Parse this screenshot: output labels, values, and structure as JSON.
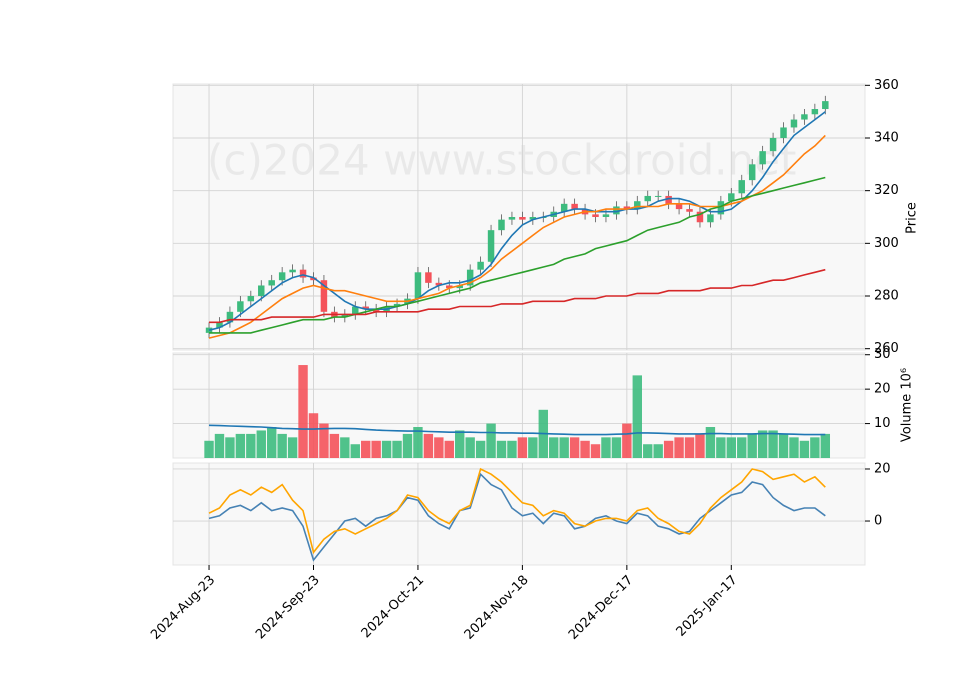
{
  "chart_data": {
    "type": "candlestick",
    "watermark": "(c)2024 www.stockdroid.net",
    "x": [
      0,
      1,
      2,
      3,
      4,
      5,
      6,
      7,
      8,
      9,
      10,
      11,
      12,
      13,
      14,
      15,
      16,
      17,
      18,
      19,
      20,
      21,
      22,
      23,
      24,
      25,
      26,
      27,
      28,
      29,
      30,
      31,
      32,
      33,
      34,
      35,
      36,
      37,
      38,
      39,
      40,
      41,
      42,
      43,
      44,
      45,
      46,
      47,
      48,
      49,
      50,
      51,
      52,
      53,
      54,
      55,
      56,
      57,
      58,
      59
    ],
    "xlim": [
      -3.45,
      62.8
    ],
    "xticks": [
      {
        "value": 0,
        "label": "2024-Aug-23"
      },
      {
        "value": 10,
        "label": "2024-Sep-23"
      },
      {
        "value": 20,
        "label": "2024-Oct-21"
      },
      {
        "value": 30,
        "label": "2024-Nov-18"
      },
      {
        "value": 40,
        "label": "2024-Dec-17"
      },
      {
        "value": 50,
        "label": "2025-Jan-17"
      }
    ],
    "open": [
      266,
      268,
      270,
      274,
      278,
      280,
      284,
      286,
      289,
      290,
      287,
      286,
      274,
      272,
      273,
      276,
      275,
      274,
      276,
      277,
      279,
      289,
      285,
      284,
      283,
      284,
      290,
      293,
      305,
      309,
      310,
      309,
      310,
      310,
      312,
      315,
      313,
      311,
      310,
      311,
      314,
      313,
      316,
      318,
      318,
      315,
      313,
      312,
      308,
      311,
      316,
      319,
      324,
      330,
      335,
      340,
      344,
      347,
      349,
      351
    ],
    "high": [
      270,
      272,
      276,
      280,
      282,
      286,
      288,
      291,
      292,
      292,
      289,
      288,
      276,
      275,
      278,
      278,
      277,
      278,
      279,
      281,
      291,
      291,
      287,
      286,
      286,
      292,
      295,
      307,
      311,
      312,
      312,
      312,
      312,
      314,
      317,
      317,
      315,
      313,
      313,
      316,
      316,
      318,
      320,
      320,
      320,
      317,
      315,
      314,
      313,
      318,
      321,
      326,
      332,
      337,
      342,
      346,
      349,
      351,
      353,
      356
    ],
    "low": [
      264,
      266,
      268,
      272,
      276,
      278,
      282,
      284,
      287,
      285,
      284,
      272,
      270,
      270,
      271,
      273,
      272,
      272,
      274,
      275,
      277,
      283,
      282,
      281,
      281,
      282,
      288,
      291,
      303,
      307,
      307,
      307,
      308,
      308,
      310,
      311,
      309,
      308,
      308,
      309,
      311,
      311,
      314,
      316,
      313,
      311,
      310,
      306,
      306,
      309,
      314,
      317,
      322,
      328,
      333,
      338,
      342,
      345,
      347,
      349
    ],
    "close": [
      268,
      270,
      274,
      278,
      280,
      284,
      286,
      289,
      290,
      287,
      286,
      274,
      272,
      273,
      276,
      275,
      274,
      276,
      277,
      279,
      289,
      285,
      284,
      283,
      284,
      290,
      293,
      305,
      309,
      310,
      309,
      310,
      310,
      312,
      315,
      313,
      311,
      310,
      311,
      314,
      313,
      316,
      318,
      318,
      315,
      313,
      312,
      308,
      311,
      316,
      319,
      324,
      330,
      335,
      340,
      344,
      347,
      349,
      351,
      354
    ],
    "up_color": "#3dbb7e",
    "down_color": "#f4525a",
    "ylim": [
      259.5,
      360.5
    ],
    "yticks": [
      260,
      280,
      300,
      320,
      340,
      360
    ],
    "y_label": "Price",
    "grid": true,
    "moving_averages": [
      {
        "color": "#1f77b4",
        "values": [
          267,
          268,
          270,
          273,
          276,
          279,
          282,
          285,
          287,
          288,
          287,
          284,
          281,
          278,
          276,
          275,
          275,
          275,
          276,
          277,
          279,
          282,
          284,
          285,
          285,
          286,
          288,
          292,
          298,
          303,
          307,
          309,
          310,
          311,
          312,
          313,
          313,
          312,
          312,
          312,
          313,
          313,
          314,
          316,
          317,
          317,
          316,
          314,
          312,
          312,
          313,
          316,
          320,
          325,
          331,
          336,
          341,
          344,
          347,
          350
        ]
      },
      {
        "color": "#ff7f0e",
        "values": [
          264,
          265,
          266,
          268,
          270,
          273,
          276,
          279,
          281,
          283,
          284,
          283,
          282,
          282,
          281,
          280,
          279,
          278,
          278,
          278,
          279,
          280,
          281,
          283,
          284,
          285,
          287,
          290,
          294,
          297,
          300,
          303,
          306,
          308,
          310,
          311,
          312,
          312,
          313,
          313,
          313,
          314,
          314,
          314,
          315,
          315,
          315,
          314,
          314,
          314,
          315,
          316,
          318,
          320,
          323,
          326,
          330,
          334,
          337,
          341
        ]
      },
      {
        "color": "#2ca02c",
        "values": [
          266,
          266,
          266,
          266,
          266,
          267,
          268,
          269,
          270,
          271,
          271,
          271,
          272,
          272,
          273,
          274,
          275,
          276,
          276,
          277,
          278,
          279,
          280,
          281,
          282,
          283,
          285,
          286,
          287,
          288,
          289,
          290,
          291,
          292,
          294,
          295,
          296,
          298,
          299,
          300,
          301,
          303,
          305,
          306,
          307,
          308,
          310,
          311,
          313,
          314,
          316,
          317,
          318,
          319,
          320,
          321,
          322,
          323,
          324,
          325
        ]
      },
      {
        "color": "#d62728",
        "values": [
          270,
          270,
          271,
          271,
          271,
          271,
          272,
          272,
          272,
          272,
          272,
          273,
          273,
          273,
          273,
          273,
          274,
          274,
          274,
          274,
          274,
          275,
          275,
          275,
          276,
          276,
          276,
          276,
          277,
          277,
          277,
          278,
          278,
          278,
          278,
          279,
          279,
          279,
          280,
          280,
          280,
          281,
          281,
          281,
          282,
          282,
          282,
          282,
          283,
          283,
          283,
          284,
          284,
          285,
          286,
          286,
          287,
          288,
          289,
          290
        ]
      }
    ],
    "volume": {
      "values": [
        5,
        7,
        6,
        7,
        7,
        8,
        9,
        7,
        6,
        27,
        13,
        10,
        7,
        6,
        4,
        5,
        5,
        5,
        5,
        7,
        9,
        7,
        6,
        5,
        8,
        6,
        5,
        10,
        5,
        5,
        6,
        6,
        14,
        6,
        6,
        6,
        5,
        4,
        6,
        6,
        10,
        24,
        4,
        4,
        5,
        6,
        6,
        7,
        9,
        6,
        6,
        6,
        7,
        8,
        8,
        7,
        6,
        5,
        6,
        7
      ],
      "ylim": [
        0,
        30.5
      ],
      "yticks": [
        10,
        20,
        30
      ],
      "y_label": "Volume  10⁶",
      "average": {
        "color": "#1f77b4",
        "values": [
          9.5,
          9.4,
          9.3,
          9.2,
          9.1,
          9.0,
          8.8,
          8.6,
          8.5,
          8.4,
          8.4,
          8.5,
          8.6,
          8.6,
          8.5,
          8.3,
          8.1,
          8.0,
          7.9,
          7.8,
          7.8,
          7.7,
          7.6,
          7.5,
          7.5,
          7.5,
          7.4,
          7.4,
          7.3,
          7.3,
          7.2,
          7.2,
          7.1,
          7.0,
          6.9,
          6.8,
          6.8,
          6.8,
          6.8,
          6.9,
          7.0,
          7.3,
          7.3,
          7.2,
          7.1,
          7.0,
          7.0,
          7.0,
          7.1,
          7.1,
          7.0,
          7.0,
          7.0,
          7.1,
          7.1,
          7.0,
          6.9,
          6.8,
          6.8,
          6.8
        ]
      }
    },
    "indicator": {
      "ylim": [
        -16.9,
        22.3
      ],
      "yticks": [
        0,
        20
      ],
      "series": [
        {
          "color": "#4682b4",
          "values": [
            1,
            2,
            5,
            6,
            4,
            7,
            4,
            5,
            4,
            -2,
            -15,
            -10,
            -5,
            0,
            1,
            -2,
            1,
            2,
            4,
            9,
            8,
            2,
            -1,
            -3,
            4,
            5,
            18,
            14,
            12,
            5,
            2,
            3,
            -1,
            3,
            2,
            -3,
            -2,
            1,
            2,
            0,
            -1,
            3,
            2,
            -2,
            -3,
            -5,
            -4,
            1,
            4,
            7,
            10,
            11,
            15,
            14,
            9,
            6,
            4,
            5,
            5,
            2
          ]
        },
        {
          "color": "#ffa500",
          "values": [
            3,
            5,
            10,
            12,
            10,
            13,
            11,
            14,
            8,
            4,
            -12,
            -7,
            -4,
            -3,
            -5,
            -3,
            -1,
            1,
            4,
            10,
            9,
            4,
            1,
            -1,
            4,
            6,
            20,
            18,
            15,
            11,
            7,
            6,
            2,
            4,
            3,
            -1,
            -2,
            0,
            1,
            1,
            0,
            4,
            5,
            1,
            -1,
            -4,
            -5,
            -1,
            5,
            9,
            12,
            15,
            20,
            19,
            16,
            17,
            18,
            15,
            17,
            13
          ]
        }
      ]
    }
  }
}
